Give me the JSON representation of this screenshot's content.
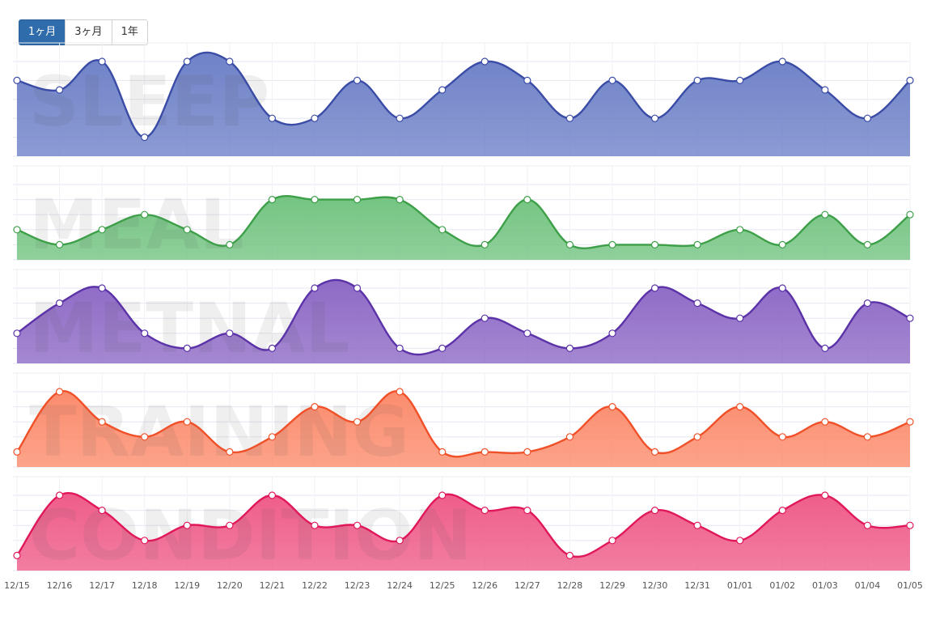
{
  "period_toggle": {
    "options": [
      {
        "label": "1ヶ月",
        "active": true
      },
      {
        "label": "3ヶ月",
        "active": false
      },
      {
        "label": "1年",
        "active": false
      }
    ]
  },
  "chart_data": {
    "type": "area",
    "categories": [
      "12/15",
      "12/16",
      "12/17",
      "12/18",
      "12/19",
      "12/20",
      "12/21",
      "12/22",
      "12/23",
      "12/24",
      "12/25",
      "12/26",
      "12/27",
      "12/28",
      "12/29",
      "12/30",
      "12/31",
      "01/01",
      "01/02",
      "01/03",
      "01/04",
      "01/05"
    ],
    "ylim": [
      0,
      5
    ],
    "grid": true,
    "panels": [
      {
        "label": "SLEEP",
        "color": "#3a4ca6",
        "fill": "#6f82c8",
        "values": [
          4,
          3.5,
          5,
          1,
          5,
          5,
          2,
          2,
          4,
          2,
          3.5,
          5,
          4,
          2,
          4,
          2,
          4,
          4,
          5,
          3.5,
          2,
          4
        ]
      },
      {
        "label": "MEAL",
        "color": "#3d9f48",
        "fill": "#74c482",
        "values": [
          2,
          1,
          2,
          3,
          2,
          1,
          4,
          4,
          4,
          4,
          2,
          1,
          4,
          1,
          1,
          1,
          1,
          2,
          1,
          3,
          1,
          3
        ]
      },
      {
        "label": "METNAL",
        "color": "#5b32a8",
        "fill": "#8e6ac6",
        "values": [
          2,
          4,
          5,
          2,
          1,
          2,
          1,
          5,
          5,
          1,
          1,
          3,
          2,
          1,
          2,
          5,
          4,
          3,
          5,
          1,
          4,
          3
        ]
      },
      {
        "label": "TRAINING",
        "color": "#f05028",
        "fill": "#fb8c6d",
        "values": [
          1,
          5,
          3,
          2,
          3,
          1,
          2,
          4,
          3,
          5,
          1,
          1,
          1,
          2,
          4,
          1,
          2,
          4,
          2,
          3,
          2,
          3
        ]
      },
      {
        "label": "CONDITION",
        "color": "#e0185a",
        "fill": "#ef5d8a",
        "values": [
          1,
          5,
          4,
          2,
          3,
          3,
          5,
          3,
          3,
          2,
          5,
          4,
          4,
          1,
          2,
          4,
          3,
          2,
          4,
          5,
          3,
          3
        ]
      }
    ]
  }
}
